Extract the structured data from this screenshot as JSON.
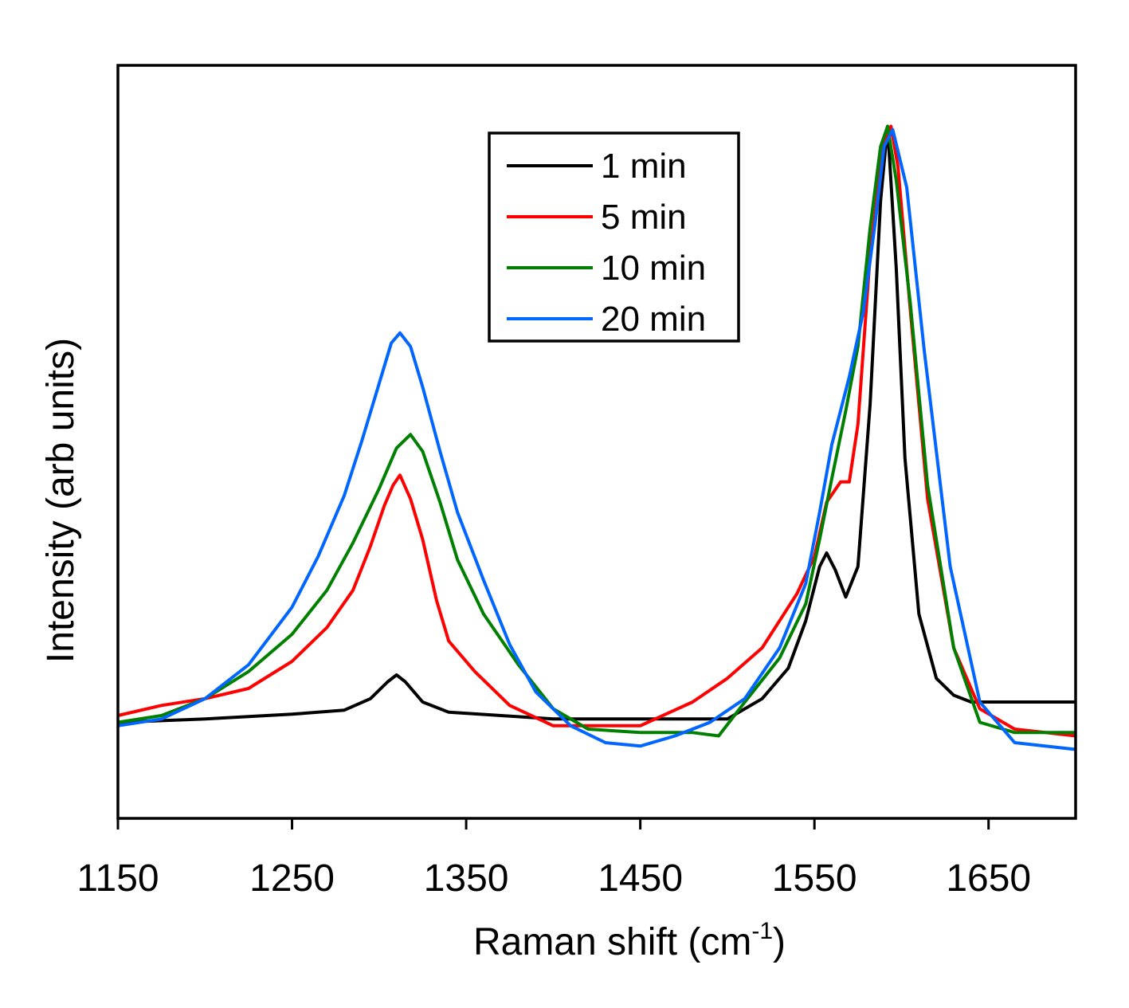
{
  "chart_data": {
    "type": "line",
    "title": "",
    "xlabel": "Raman shift (cm",
    "xlabel_superscript": "-1",
    "xlabel_suffix": ")",
    "ylabel": "Intensity (arb units)",
    "xlim": [
      1150,
      1700
    ],
    "ylim": [
      0,
      100
    ],
    "x_ticks": [
      1150,
      1250,
      1350,
      1450,
      1550,
      1650
    ],
    "x_tick_labels": [
      "1150",
      "1250",
      "1350",
      "1450",
      "1550",
      "1650"
    ],
    "y_ticks_shown": false,
    "grid": false,
    "legend_position": "top-center",
    "series": [
      {
        "name": "1 min",
        "color": "#000000",
        "x": [
          1150,
          1200,
          1250,
          1280,
          1295,
          1305,
          1310,
          1315,
          1325,
          1340,
          1370,
          1400,
          1450,
          1500,
          1520,
          1535,
          1545,
          1553,
          1557,
          1562,
          1568,
          1575,
          1582,
          1588,
          1592,
          1597,
          1602,
          1610,
          1620,
          1630,
          1640,
          1660,
          1700
        ],
        "y": [
          11.0,
          11.5,
          12.2,
          12.8,
          14.5,
          17.0,
          18.0,
          17.0,
          14.0,
          12.5,
          12.0,
          11.5,
          11.5,
          11.5,
          14.5,
          19.0,
          26.0,
          34.0,
          36.0,
          33.5,
          29.5,
          34.0,
          58.0,
          88.0,
          99.0,
          78.0,
          50.0,
          27.0,
          17.5,
          15.0,
          14.0,
          14.0,
          14.0
        ]
      },
      {
        "name": "5 min",
        "color": "#ff0000",
        "x": [
          1150,
          1175,
          1200,
          1225,
          1250,
          1270,
          1285,
          1295,
          1303,
          1308,
          1312,
          1318,
          1325,
          1333,
          1340,
          1355,
          1375,
          1400,
          1420,
          1450,
          1480,
          1500,
          1520,
          1540,
          1550,
          1557,
          1565,
          1570,
          1575,
          1582,
          1590,
          1594,
          1598,
          1605,
          1615,
          1630,
          1645,
          1665,
          1700
        ],
        "y": [
          12.0,
          13.5,
          14.5,
          16.0,
          20.0,
          25.0,
          30.5,
          37.0,
          43.0,
          46.0,
          47.5,
          44.0,
          38.0,
          29.0,
          23.0,
          18.5,
          13.5,
          10.5,
          10.5,
          10.5,
          14.0,
          17.5,
          22.0,
          30.0,
          35.5,
          43.5,
          46.5,
          46.5,
          55.0,
          80.0,
          97.0,
          99.0,
          93.0,
          72.0,
          44.0,
          22.0,
          13.0,
          10.0,
          9.0
        ]
      },
      {
        "name": "10 min",
        "color": "#008000",
        "x": [
          1150,
          1175,
          1200,
          1225,
          1250,
          1270,
          1285,
          1300,
          1310,
          1318,
          1325,
          1335,
          1345,
          1360,
          1380,
          1400,
          1420,
          1450,
          1480,
          1495,
          1510,
          1530,
          1545,
          1553,
          1560,
          1568,
          1575,
          1582,
          1588,
          1592,
          1597,
          1605,
          1615,
          1630,
          1645,
          1665,
          1700
        ],
        "y": [
          11.0,
          12.0,
          14.5,
          18.5,
          24.0,
          30.5,
          37.5,
          45.5,
          51.5,
          53.5,
          51.0,
          43.5,
          35.0,
          27.0,
          19.5,
          13.0,
          10.0,
          9.5,
          9.5,
          9.0,
          14.0,
          20.5,
          28.5,
          38.0,
          47.0,
          57.0,
          66.5,
          84.0,
          96.0,
          99.0,
          91.0,
          73.0,
          46.0,
          22.0,
          11.0,
          9.5,
          9.5
        ]
      },
      {
        "name": "20 min",
        "color": "#0066ff",
        "x": [
          1150,
          1175,
          1200,
          1225,
          1250,
          1265,
          1280,
          1290,
          1300,
          1307,
          1312,
          1318,
          1325,
          1335,
          1345,
          1360,
          1375,
          1390,
          1410,
          1430,
          1450,
          1470,
          1490,
          1510,
          1530,
          1545,
          1553,
          1560,
          1570,
          1578,
          1585,
          1590,
          1595,
          1603,
          1613,
          1628,
          1645,
          1665,
          1700
        ],
        "y": [
          10.5,
          11.5,
          14.5,
          19.5,
          28.0,
          35.5,
          44.5,
          52.5,
          61.0,
          67.0,
          68.5,
          66.5,
          60.5,
          51.0,
          42.0,
          32.0,
          22.5,
          15.5,
          10.5,
          8.0,
          7.5,
          9.0,
          11.0,
          14.5,
          22.0,
          31.5,
          42.0,
          52.0,
          62.0,
          71.5,
          85.0,
          96.0,
          98.5,
          90.0,
          66.0,
          34.0,
          14.0,
          8.0,
          7.0
        ]
      }
    ]
  }
}
